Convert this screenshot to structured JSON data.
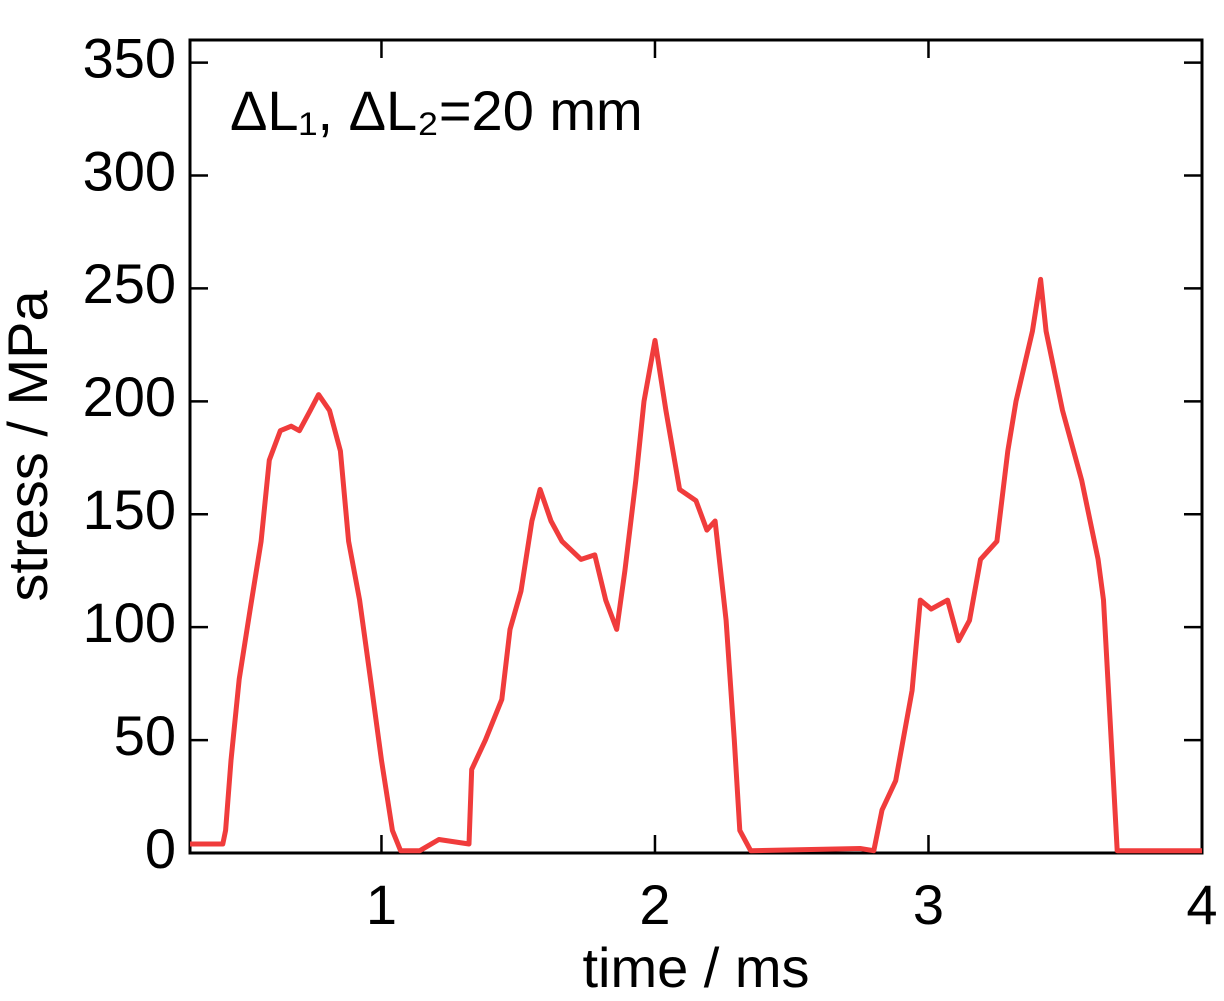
{
  "chart_data": {
    "type": "line",
    "xlabel": "time / ms",
    "ylabel": "stress / MPa",
    "annotation": "ΔL₁, ΔL₂=20 mm",
    "xlim": [
      0.3,
      4
    ],
    "xticks": [
      1,
      2,
      3,
      4
    ],
    "ylim": [
      0,
      360
    ],
    "yticks": [
      0,
      50,
      100,
      150,
      200,
      250,
      300,
      350
    ],
    "series": [
      {
        "name": "stress",
        "color": "#f03c3c",
        "x": [
          0.3,
          0.42,
          0.43,
          0.45,
          0.48,
          0.52,
          0.56,
          0.59,
          0.63,
          0.67,
          0.7,
          0.74,
          0.77,
          0.81,
          0.85,
          0.88,
          0.92,
          0.96,
          1.0,
          1.04,
          1.07,
          1.14,
          1.21,
          1.32,
          1.33,
          1.38,
          1.44,
          1.47,
          1.51,
          1.55,
          1.58,
          1.62,
          1.66,
          1.73,
          1.78,
          1.82,
          1.86,
          1.89,
          1.93,
          1.96,
          2.0,
          2.04,
          2.09,
          2.15,
          2.19,
          2.22,
          2.26,
          2.29,
          2.31,
          2.35,
          2.75,
          2.8,
          2.83,
          2.88,
          2.94,
          2.97,
          3.01,
          3.07,
          3.11,
          3.15,
          3.19,
          3.25,
          3.29,
          3.32,
          3.38,
          3.41,
          3.43,
          3.49,
          3.56,
          3.62,
          3.64,
          3.67,
          3.69,
          4.0
        ],
        "values": [
          4,
          4,
          10,
          41,
          77,
          108,
          138,
          174,
          187,
          189,
          187,
          196,
          203,
          196,
          178,
          138,
          112,
          77,
          41,
          10,
          1,
          1,
          6,
          4,
          37,
          50,
          68,
          99,
          116,
          147,
          161,
          147,
          138,
          130,
          132,
          112,
          99,
          125,
          165,
          200,
          227,
          196,
          161,
          156,
          143,
          147,
          103,
          50,
          10,
          1,
          2,
          1,
          19,
          32,
          72,
          112,
          108,
          112,
          94,
          103,
          130,
          138,
          178,
          200,
          231,
          254,
          231,
          196,
          165,
          130,
          112,
          46,
          1,
          1
        ]
      }
    ]
  }
}
